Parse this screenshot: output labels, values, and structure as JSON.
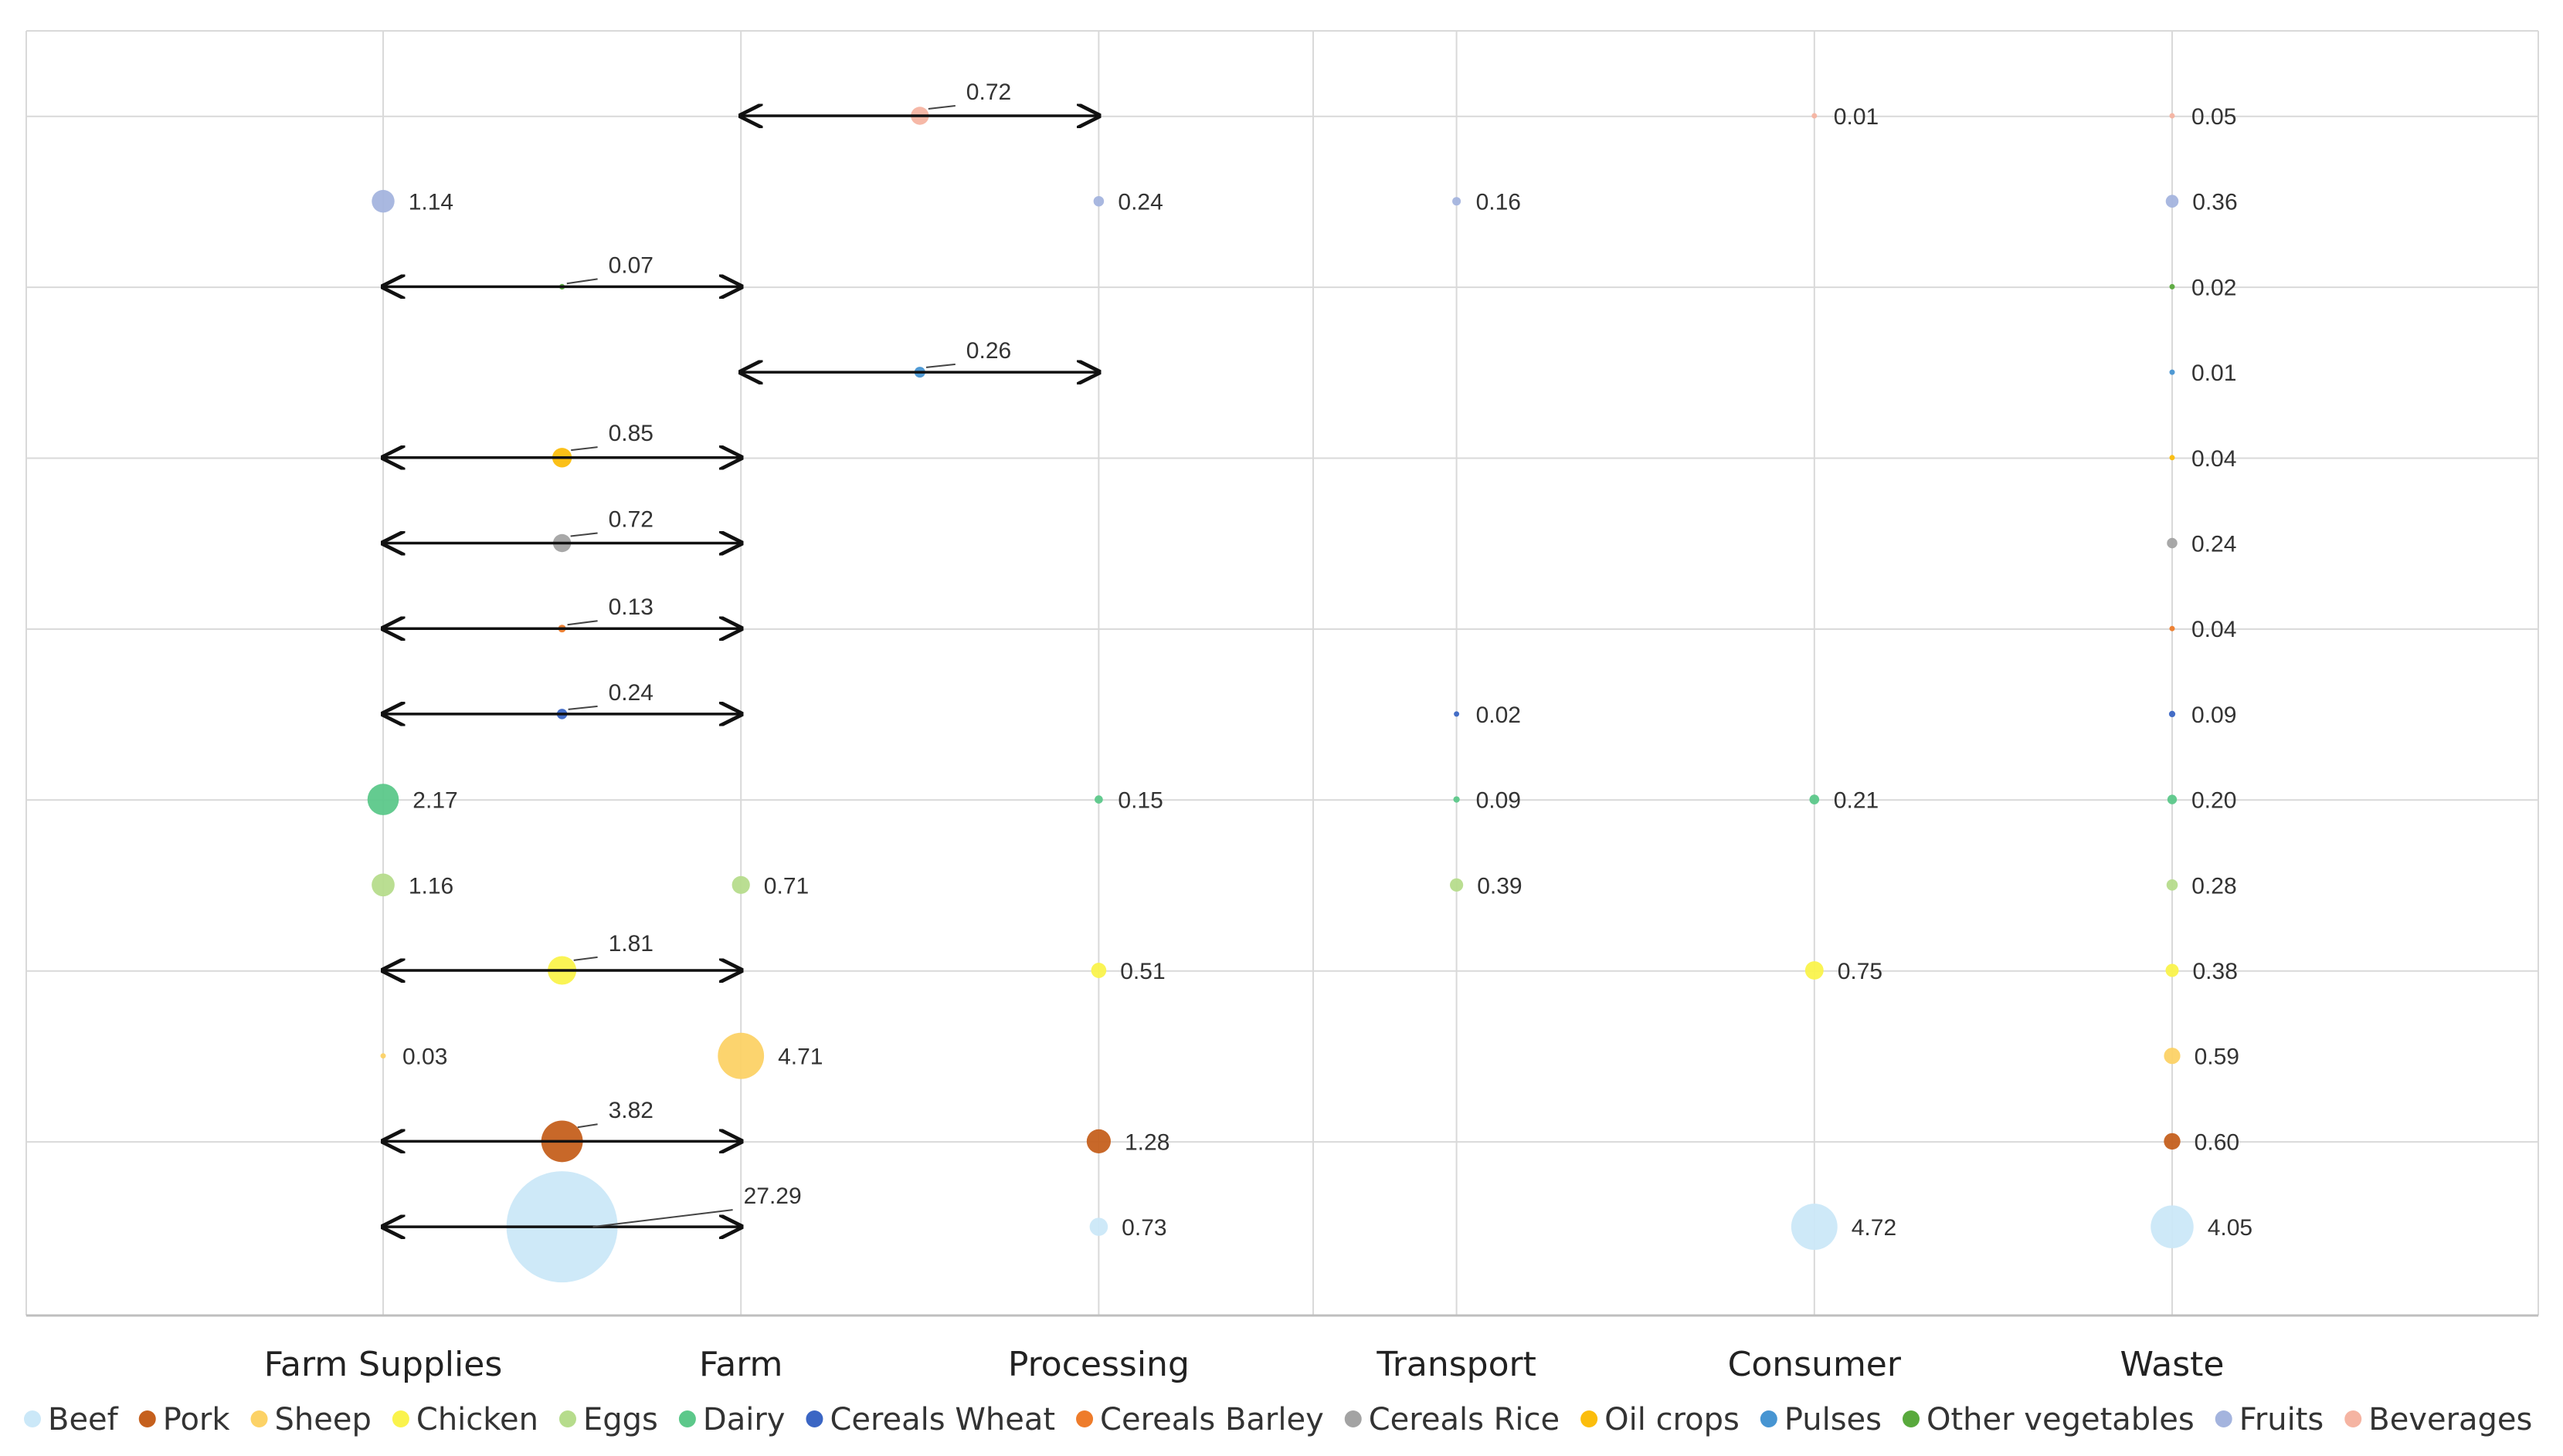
{
  "chart_data": {
    "type": "bubble",
    "title": "",
    "categories": [
      "Farm Supplies",
      "Farm",
      "Processing",
      "Transport",
      "Consumer",
      "Waste"
    ],
    "grid": true,
    "legend_position": "bottom",
    "series": [
      {
        "name": "Beef",
        "color": "#cbe8f8",
        "points": [
          {
            "stage": 0.5,
            "value": 27.29,
            "span": [
              0,
              1
            ],
            "pos": "mid"
          },
          {
            "stage": 2,
            "value": 0.73,
            "label": "0.73"
          },
          {
            "stage": 4,
            "value": 4.72,
            "label": "4.72"
          },
          {
            "stage": 5,
            "value": 4.05,
            "label": "4.05"
          }
        ]
      },
      {
        "name": "Pork",
        "color": "#c5601d",
        "points": [
          {
            "stage": 0.5,
            "value": 3.82,
            "span": [
              0,
              1
            ],
            "pos": "mid"
          },
          {
            "stage": 2,
            "value": 1.28,
            "label": "1.28"
          },
          {
            "stage": 5,
            "value": 0.6,
            "label": "0.60"
          }
        ]
      },
      {
        "name": "Sheep",
        "color": "#fcd266",
        "points": [
          {
            "stage": 0,
            "value": 0.03,
            "label": "0.03"
          },
          {
            "stage": 1,
            "value": 4.71,
            "label": "4.71"
          },
          {
            "stage": 5,
            "value": 0.59,
            "label": "0.59"
          }
        ]
      },
      {
        "name": "Chicken",
        "color": "#faf34c",
        "points": [
          {
            "stage": 0.5,
            "value": 1.81,
            "span": [
              0,
              1
            ],
            "pos": "mid"
          },
          {
            "stage": 2,
            "value": 0.51,
            "label": "0.51"
          },
          {
            "stage": 4,
            "value": 0.75,
            "label": "0.75"
          },
          {
            "stage": 5,
            "value": 0.38,
            "label": "0.38"
          }
        ]
      },
      {
        "name": "Eggs",
        "color": "#b6dc8c",
        "points": [
          {
            "stage": 0,
            "value": 1.16,
            "label": "1.16"
          },
          {
            "stage": 1,
            "value": 0.71,
            "label": "0.71"
          },
          {
            "stage": 3,
            "value": 0.39,
            "label": "0.39"
          },
          {
            "stage": 5,
            "value": 0.28,
            "label": "0.28"
          }
        ]
      },
      {
        "name": "Dairy",
        "color": "#5cc88a",
        "points": [
          {
            "stage": 0,
            "value": 2.17,
            "label": "2.17"
          },
          {
            "stage": 2,
            "value": 0.15,
            "label": "0.15"
          },
          {
            "stage": 3,
            "value": 0.09,
            "label": "0.09"
          },
          {
            "stage": 4,
            "value": 0.21,
            "label": "0.21"
          },
          {
            "stage": 5,
            "value": 0.2,
            "label": "0.20"
          }
        ]
      },
      {
        "name": "Cereals Wheat",
        "color": "#3b66c4",
        "points": [
          {
            "stage": 0.5,
            "value": 0.24,
            "span": [
              0,
              1
            ],
            "pos": "mid"
          },
          {
            "stage": 3,
            "value": 0.02,
            "label": "0.02"
          },
          {
            "stage": 5,
            "value": 0.09,
            "label": "0.09"
          }
        ]
      },
      {
        "name": "Cereals Barley",
        "color": "#ee7c2b",
        "points": [
          {
            "stage": 0.5,
            "value": 0.13,
            "span": [
              0,
              1
            ],
            "pos": "mid"
          },
          {
            "stage": 5,
            "value": 0.04,
            "label": "0.04"
          }
        ]
      },
      {
        "name": "Cereals Rice",
        "color": "#a3a3a3",
        "points": [
          {
            "stage": 0.5,
            "value": 0.72,
            "span": [
              0,
              1
            ],
            "pos": "mid"
          },
          {
            "stage": 5,
            "value": 0.24,
            "label": "0.24"
          }
        ]
      },
      {
        "name": "Oil crops",
        "color": "#fbbd0c",
        "points": [
          {
            "stage": 0.5,
            "value": 0.85,
            "span": [
              0,
              1
            ],
            "pos": "mid"
          },
          {
            "stage": 5,
            "value": 0.04,
            "label": "0.04"
          }
        ]
      },
      {
        "name": "Pulses",
        "color": "#4795d2",
        "points": [
          {
            "stage": 1.5,
            "value": 0.26,
            "span": [
              1,
              2
            ],
            "pos": "mid"
          },
          {
            "stage": 5,
            "value": 0.01,
            "label": "0.01"
          }
        ]
      },
      {
        "name": "Other vegetables",
        "color": "#58a93c",
        "points": [
          {
            "stage": 0.5,
            "value": 0.07,
            "span": [
              0,
              1
            ],
            "pos": "mid"
          },
          {
            "stage": 5,
            "value": 0.02,
            "label": "0.02"
          }
        ]
      },
      {
        "name": "Fruits",
        "color": "#a4b4de",
        "points": [
          {
            "stage": 0,
            "value": 1.14,
            "label": "1.14"
          },
          {
            "stage": 2,
            "value": 0.24,
            "label": "0.24"
          },
          {
            "stage": 3,
            "value": 0.16,
            "label": "0.16"
          },
          {
            "stage": 5,
            "value": 0.36,
            "label": "0.36"
          }
        ]
      },
      {
        "name": "Beverages",
        "color": "#f5b4a2",
        "points": [
          {
            "stage": 1.5,
            "value": 0.72,
            "span": [
              1,
              2
            ],
            "pos": "mid"
          },
          {
            "stage": 4,
            "value": 0.01,
            "label": "0.01"
          },
          {
            "stage": 5,
            "value": 0.05,
            "label": "0.05"
          }
        ]
      }
    ]
  }
}
